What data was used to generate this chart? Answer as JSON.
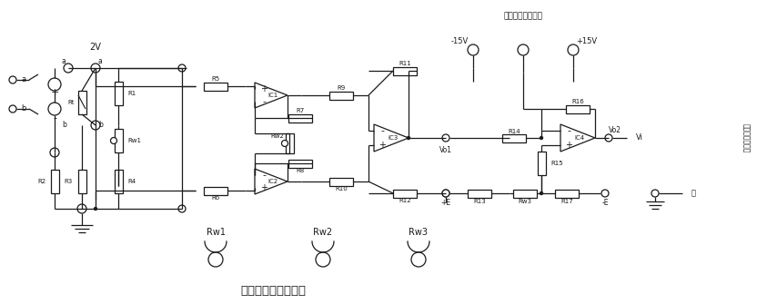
{
  "title": "热电阵测温特性实验",
  "top_label": "接主控笱电源输出",
  "right_label": "接主控笱数显表",
  "voltage_2V": "2V",
  "voltage_neg15": "-15V",
  "voltage_pos15": "+15V",
  "bg_color": "#ffffff",
  "line_color": "#1a1a1a",
  "figsize": [
    8.43,
    3.35
  ],
  "dpi": 100
}
